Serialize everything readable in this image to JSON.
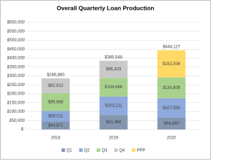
{
  "chart_data": {
    "type": "stacked-bar",
    "title": "Overall Quarterly Loan Production",
    "categories": [
      "2018",
      "2019",
      "2020"
    ],
    "series": [
      {
        "name": "Q1",
        "color": "#8497b0",
        "values": [
          44971,
          81368,
          66880
        ],
        "value_labels": [
          "$44,971",
          "$81,368",
          "$66,880"
        ]
      },
      {
        "name": "Q2",
        "color": "#8faadc",
        "values": [
          59011,
          103111,
          107933
        ],
        "value_labels": [
          "$59,011",
          "$103,111",
          "$107,933"
        ]
      },
      {
        "name": "Q3",
        "color": "#a9d18e",
        "values": [
          99986,
          104666,
          116808
        ],
        "value_labels": [
          "$99,986",
          "$104,666",
          "$116,808"
        ]
      },
      {
        "name": "Q4",
        "color": "#c9c9c9",
        "values": [
          82912,
          96403,
          null
        ],
        "value_labels": [
          "$82,912",
          "$96,403",
          null
        ]
      },
      {
        "name": "PPP",
        "color": "#ffd966",
        "values": [
          null,
          null,
          152506
        ],
        "value_labels": [
          null,
          null,
          "$152,506"
        ]
      }
    ],
    "totals": [
      286880,
      385548,
      444127
    ],
    "total_labels": [
      "$286,880",
      "$385,548",
      "$444,127"
    ],
    "ylim": [
      0,
      600000
    ],
    "yticks": [
      {
        "value": 0,
        "label": "$-"
      },
      {
        "value": 50000,
        "label": "$50,000"
      },
      {
        "value": 100000,
        "label": "$100,000"
      },
      {
        "value": 150000,
        "label": "$150,000"
      },
      {
        "value": 200000,
        "label": "$200,000"
      },
      {
        "value": 250000,
        "label": "$250,000"
      },
      {
        "value": 300000,
        "label": "$300,000"
      },
      {
        "value": 350000,
        "label": "$350,000"
      },
      {
        "value": 400000,
        "label": "$400,000"
      },
      {
        "value": 450000,
        "label": "$450,000"
      },
      {
        "value": 500000,
        "label": "$500,000"
      },
      {
        "value": 550000,
        "label": "$550,000"
      },
      {
        "value": 600000,
        "label": "$600,000"
      }
    ],
    "grid": true
  }
}
